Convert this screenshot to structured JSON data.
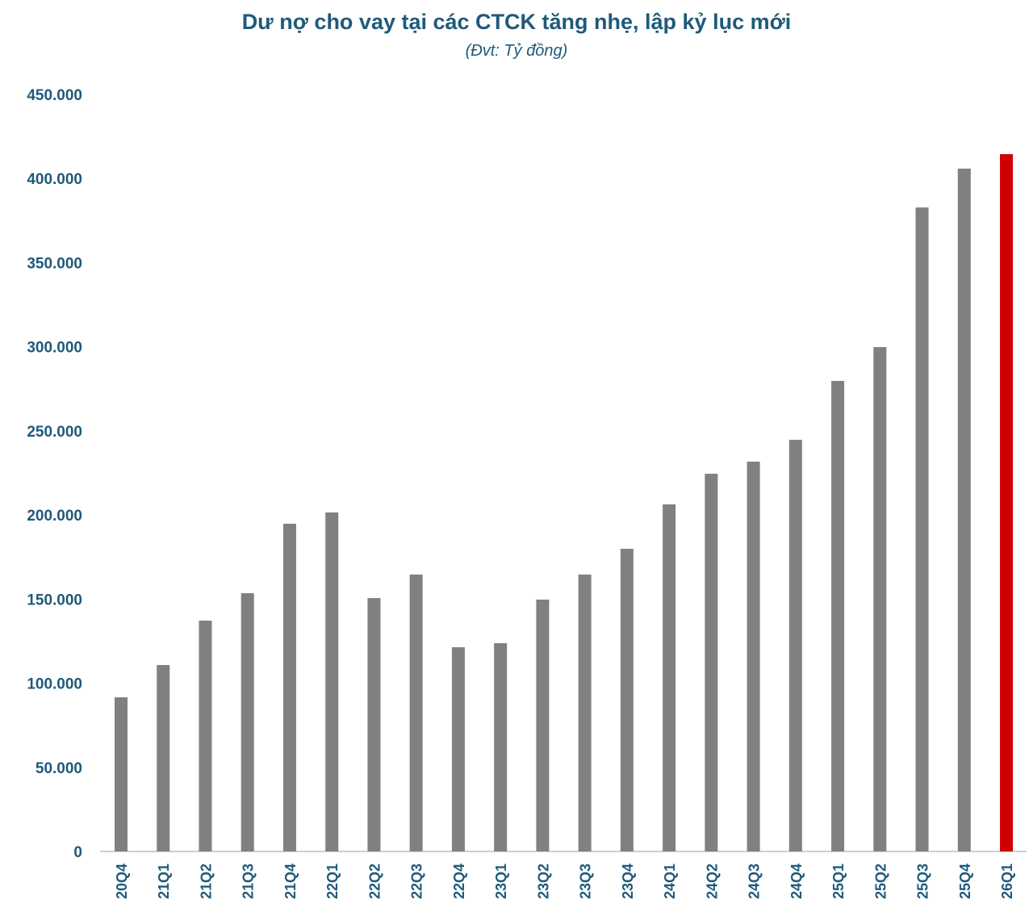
{
  "chart_data": {
    "type": "bar",
    "title": "Dư nợ cho vay tại các CTCK tăng nhẹ, lập kỷ lục mới",
    "subtitle": "(Đvt: Tỷ đồng)",
    "xlabel": "",
    "ylabel": "",
    "ylim": [
      0,
      450000
    ],
    "yticks": [
      "0",
      "50.000",
      "100.000",
      "150.000",
      "200.000",
      "250.000",
      "300.000",
      "350.000",
      "400.000",
      "450.000"
    ],
    "grid": false,
    "categories": [
      "20Q4",
      "21Q1",
      "21Q2",
      "21Q3",
      "21Q4",
      "22Q1",
      "22Q2",
      "22Q3",
      "22Q4",
      "23Q1",
      "23Q2",
      "23Q3",
      "23Q4",
      "24Q1",
      "24Q2",
      "24Q3",
      "24Q4",
      "25Q1",
      "25Q2",
      "25Q3",
      "25Q4",
      "26Q1"
    ],
    "values": [
      91600,
      110800,
      137200,
      153500,
      194800,
      201500,
      150600,
      164600,
      121400,
      123800,
      149700,
      164600,
      179900,
      206300,
      224500,
      231700,
      244700,
      279700,
      299800,
      382800,
      405900,
      414500
    ],
    "colors": {
      "default": "#808080",
      "highlight": "#d10000",
      "text": "#1f5a7a"
    },
    "highlight_category": "26Q1"
  }
}
